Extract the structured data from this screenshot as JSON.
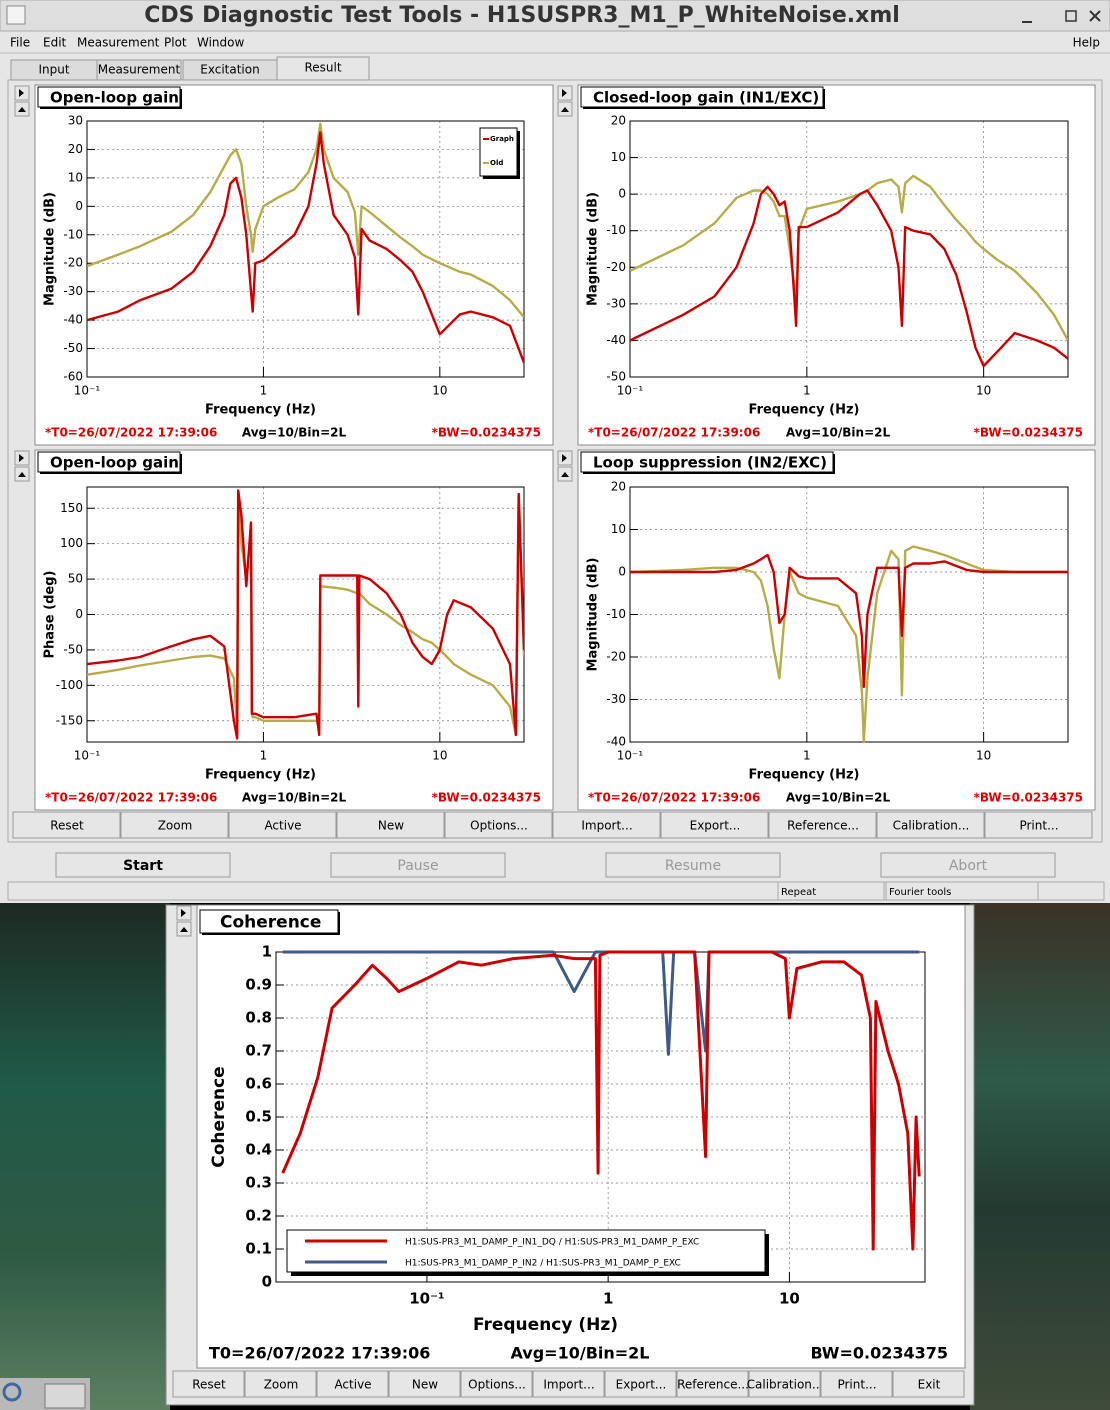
{
  "window": {
    "title": "CDS Diagnostic Test Tools - H1SUSPR3_M1_P_WhiteNoise.xml",
    "menu": [
      "File",
      "Edit",
      "Measurement",
      "Plot",
      "Window"
    ],
    "help": "Help",
    "tabs": [
      "Input",
      "Measurement",
      "Excitation",
      "Result"
    ],
    "buttons": [
      "Reset",
      "Zoom",
      "Active",
      "New",
      "Options...",
      "Import...",
      "Export...",
      "Reference...",
      "Calibration...",
      "Print..."
    ],
    "controls": [
      "Start",
      "Pause",
      "Resume",
      "Abort"
    ],
    "status": [
      "Repeat",
      "Fourier tools"
    ]
  },
  "coherence_window": {
    "buttons": [
      "Reset",
      "Zoom",
      "Active",
      "New",
      "Options...",
      "Import...",
      "Export...",
      "Reference...",
      "Calibration...",
      "Print...",
      "Exit"
    ]
  },
  "chart_data": [
    {
      "type": "line",
      "title": "Open-loop gain",
      "xlabel": "Frequency (Hz)",
      "ylabel": "Magnitude (dB)",
      "xscale": "log",
      "grid": true,
      "legend": "top-right",
      "xlim": [
        0.1,
        30
      ],
      "xticks": [
        {
          "value": 0.1,
          "label": "10⁻¹"
        },
        1,
        10
      ],
      "ylim": [
        -60,
        30
      ],
      "yticks": [
        -60,
        -50,
        -40,
        -30,
        -20,
        -10,
        0,
        10,
        20,
        30
      ],
      "footer": [
        "*T0=26/07/2022 17:39:06",
        "Avg=10/Bin=2L",
        "*BW=0.0234375"
      ],
      "x": [
        0.1,
        0.15,
        0.2,
        0.3,
        0.4,
        0.5,
        0.6,
        0.65,
        0.7,
        0.75,
        0.8,
        0.85,
        0.87,
        0.9,
        1.0,
        1.2,
        1.5,
        1.8,
        2.0,
        2.1,
        2.2,
        2.5,
        3.0,
        3.3,
        3.45,
        3.6,
        4,
        5,
        6,
        7,
        8,
        10,
        13,
        15,
        20,
        25,
        30
      ],
      "series": [
        {
          "name": "Graph",
          "color": "#cc0000",
          "values": [
            -40,
            -37,
            -33,
            -29,
            -23,
            -14,
            -3,
            8,
            10,
            3,
            -10,
            -30,
            -37,
            -20,
            -19,
            -15,
            -10,
            0,
            15,
            26,
            15,
            -3,
            -10,
            -18,
            -38,
            -8,
            -12,
            -15,
            -19,
            -23,
            -30,
            -45,
            -38,
            -37,
            -39,
            -42,
            -55
          ]
        },
        {
          "name": "Old",
          "color": "#b8ac48",
          "values": [
            -21,
            -17,
            -14,
            -9,
            -3,
            5,
            14,
            18,
            20,
            15,
            0,
            -10,
            -16,
            -8,
            0,
            3,
            6,
            12,
            20,
            29,
            20,
            10,
            5,
            -2,
            -17,
            0,
            -2,
            -7,
            -11,
            -14,
            -17,
            -20,
            -23,
            -24,
            -28,
            -33,
            -39
          ]
        }
      ]
    },
    {
      "type": "line",
      "title": "Closed-loop gain (IN1/EXC)",
      "xlabel": "Frequency (Hz)",
      "ylabel": "Magnitude (dB)",
      "xscale": "log",
      "grid": true,
      "xlim": [
        0.1,
        30
      ],
      "xticks": [
        {
          "value": 0.1,
          "label": "10⁻¹"
        },
        1,
        10
      ],
      "ylim": [
        -50,
        20
      ],
      "yticks": [
        -50,
        -40,
        -30,
        -20,
        -10,
        0,
        10,
        20
      ],
      "footer": [
        "*T0=26/07/2022 17:39:06",
        "Avg=10/Bin=2L",
        "*BW=0.0234375"
      ],
      "x": [
        0.1,
        0.2,
        0.3,
        0.4,
        0.5,
        0.55,
        0.6,
        0.65,
        0.7,
        0.75,
        0.8,
        0.85,
        0.87,
        0.9,
        1.0,
        1.5,
        2.0,
        2.2,
        2.5,
        3.0,
        3.3,
        3.45,
        3.6,
        4,
        5,
        6,
        7,
        8,
        9,
        10,
        12,
        15,
        20,
        25,
        30
      ],
      "series": [
        {
          "color": "#cc0000",
          "values": [
            -40,
            -33,
            -28,
            -20,
            -8,
            0,
            2,
            0,
            -3,
            -2,
            -10,
            -28,
            -36,
            -9,
            -9,
            -5,
            0,
            1,
            -3,
            -10,
            -20,
            -36,
            -9,
            -10,
            -11,
            -15,
            -22,
            -32,
            -42,
            -47,
            -43,
            -38,
            -40,
            -42,
            -45
          ]
        },
        {
          "color": "#b8ac48",
          "values": [
            -21,
            -14,
            -8,
            -1,
            1,
            1,
            0,
            -2,
            -6,
            -6,
            -15,
            -25,
            -30,
            -10,
            -4,
            -2,
            0,
            1,
            3,
            4,
            2,
            -5,
            3,
            5,
            2,
            -3,
            -7,
            -10,
            -13,
            -15,
            -18,
            -21,
            -27,
            -33,
            -40
          ]
        }
      ]
    },
    {
      "type": "line",
      "title": "Open-loop gain",
      "xlabel": "Frequency (Hz)",
      "ylabel": "Phase (deg)",
      "xscale": "log",
      "grid": true,
      "xlim": [
        0.1,
        30
      ],
      "xticks": [
        {
          "value": 0.1,
          "label": "10⁻¹"
        },
        1,
        10
      ],
      "ylim": [
        -180,
        180
      ],
      "yticks": [
        -150,
        -100,
        -50,
        0,
        50,
        100,
        150
      ],
      "footer": [
        "*T0=26/07/2022 17:39:06",
        "Avg=10/Bin=2L",
        "*BW=0.0234375"
      ],
      "x": [
        0.1,
        0.15,
        0.2,
        0.3,
        0.4,
        0.5,
        0.6,
        0.68,
        0.71,
        0.72,
        0.75,
        0.8,
        0.85,
        0.86,
        0.87,
        0.9,
        1.0,
        1.5,
        2.0,
        2.07,
        2.1,
        2.5,
        3.0,
        3.4,
        3.45,
        3.5,
        4,
        5,
        6,
        7,
        8,
        9,
        10,
        11,
        12,
        15,
        20,
        25,
        27,
        28,
        30
      ],
      "series": [
        {
          "color": "#cc0000",
          "values": [
            -70,
            -65,
            -60,
            -45,
            -35,
            -30,
            -45,
            -150,
            -175,
            175,
            140,
            40,
            130,
            -140,
            -140,
            -140,
            -145,
            -145,
            -140,
            -170,
            55,
            55,
            55,
            55,
            -130,
            55,
            50,
            30,
            0,
            -40,
            -60,
            -70,
            -50,
            0,
            20,
            10,
            -20,
            -70,
            -170,
            170,
            -50
          ]
        },
        {
          "color": "#b8ac48",
          "values": [
            -85,
            -78,
            -72,
            -65,
            -60,
            -58,
            -62,
            -90,
            -160,
            170,
            100,
            50,
            120,
            -140,
            -145,
            -145,
            -150,
            -150,
            -150,
            -160,
            40,
            38,
            35,
            30,
            25,
            30,
            15,
            0,
            -15,
            -25,
            -35,
            -40,
            -50,
            -60,
            -70,
            -85,
            -100,
            -130,
            -170,
            170,
            -60
          ]
        }
      ]
    },
    {
      "type": "line",
      "title": "Loop suppression (IN2/EXC)",
      "xlabel": "Frequency (Hz)",
      "ylabel": "Magnitude (dB)",
      "xscale": "log",
      "grid": true,
      "xlim": [
        0.1,
        30
      ],
      "xticks": [
        {
          "value": 0.1,
          "label": "10⁻¹"
        },
        1,
        10
      ],
      "ylim": [
        -40,
        20
      ],
      "yticks": [
        -40,
        -30,
        -20,
        -10,
        0,
        10,
        20
      ],
      "footer": [
        "*T0=26/07/2022 17:39:06",
        "Avg=10/Bin=2L",
        "*BW=0.0234375"
      ],
      "x": [
        0.1,
        0.2,
        0.3,
        0.4,
        0.5,
        0.55,
        0.6,
        0.65,
        0.7,
        0.75,
        0.8,
        0.9,
        1.0,
        1.5,
        1.9,
        2.05,
        2.1,
        2.2,
        2.5,
        3.0,
        3.3,
        3.45,
        3.6,
        4,
        5,
        6,
        8,
        10,
        15,
        20,
        30
      ],
      "series": [
        {
          "color": "#cc0000",
          "values": [
            0,
            0,
            0,
            0.5,
            2,
            3,
            4,
            0,
            -12,
            -10,
            1,
            -1,
            -1.5,
            -1.5,
            -5,
            -15,
            -27,
            -10,
            1,
            1,
            1,
            -15,
            1,
            2,
            2,
            2.5,
            0.5,
            0,
            0,
            0,
            0
          ]
        },
        {
          "color": "#b8ac48",
          "values": [
            0,
            0.5,
            1,
            1,
            0,
            -2,
            -8,
            -18,
            -25,
            -10,
            0,
            -5,
            -6,
            -8,
            -15,
            -28,
            -40,
            -25,
            -5,
            5,
            3,
            -29,
            5,
            6,
            5,
            4,
            2,
            0.5,
            0,
            0,
            0
          ]
        }
      ]
    },
    {
      "type": "line",
      "title": "Coherence",
      "xlabel": "Frequency (Hz)",
      "ylabel": "Coherence",
      "xscale": "log",
      "grid": true,
      "legend": "bottom-left",
      "xlim": [
        0.0147,
        56
      ],
      "xticks": [
        {
          "value": 0.1,
          "label": "10⁻¹"
        },
        1,
        10
      ],
      "ylim": [
        0,
        1
      ],
      "yticks": [
        0,
        0.1,
        0.2,
        0.3,
        0.4,
        0.5,
        0.6,
        0.7,
        0.8,
        0.9,
        1
      ],
      "footer": [
        "T0=26/07/2022 17:39:06",
        "Avg=10/Bin=2L",
        "BW=0.0234375"
      ],
      "x": [
        0.016,
        0.02,
        0.025,
        0.03,
        0.04,
        0.05,
        0.06,
        0.07,
        0.1,
        0.15,
        0.2,
        0.3,
        0.5,
        0.65,
        0.85,
        0.88,
        0.9,
        1.0,
        2.0,
        2.15,
        2.3,
        3.0,
        3.45,
        3.6,
        5,
        8,
        9.5,
        10,
        11,
        15,
        20,
        25,
        28,
        29,
        30,
        35,
        40,
        45,
        48,
        50,
        52
      ],
      "series": [
        {
          "name": "H1:SUS-PR3_M1_DAMP_P_IN1_DQ / H1:SUS-PR3_M1_DAMP_P_EXC",
          "color": "#cc0000",
          "values": [
            0.33,
            0.45,
            0.62,
            0.83,
            0.9,
            0.96,
            0.92,
            0.88,
            0.92,
            0.97,
            0.96,
            0.98,
            0.99,
            0.98,
            0.98,
            0.33,
            0.99,
            1,
            1,
            1,
            1,
            1,
            0.38,
            1,
            1,
            1,
            0.98,
            0.8,
            0.95,
            0.97,
            0.97,
            0.93,
            0.8,
            0.1,
            0.85,
            0.7,
            0.6,
            0.45,
            0.1,
            0.5,
            0.32
          ]
        },
        {
          "name": "H1:SUS-PR3_M1_DAMP_P_IN2 / H1:SUS-PR3_M1_DAMP_P_EXC",
          "color": "#3d5a8a",
          "values": [
            1,
            1,
            1,
            1,
            1,
            1,
            1,
            1,
            1,
            1,
            1,
            1,
            1,
            0.88,
            1,
            1,
            1,
            1,
            1,
            0.69,
            1,
            1,
            0.7,
            1,
            1,
            1,
            1,
            1,
            1,
            1,
            1,
            1,
            1,
            1,
            1,
            1,
            1,
            1,
            1,
            1,
            1
          ]
        }
      ]
    }
  ]
}
